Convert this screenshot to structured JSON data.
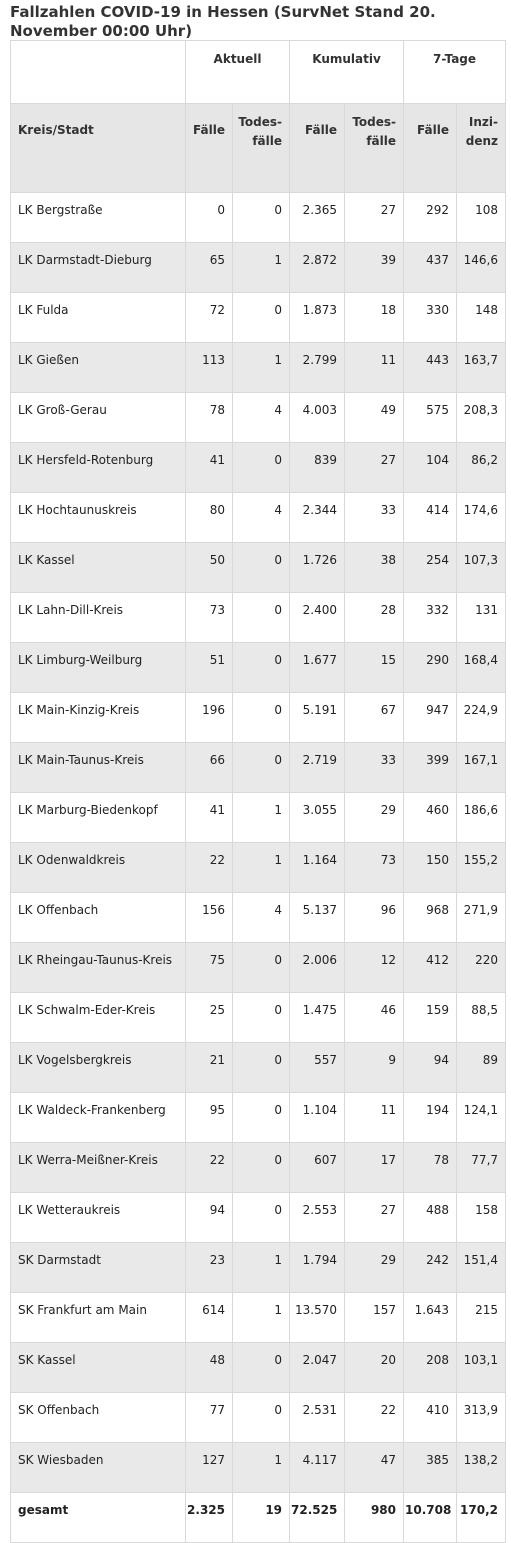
{
  "title": "Fallzahlen COVID-19 in Hessen (SurvNet Stand 20. November 00:00 Uhr)",
  "group_headers": [
    "Aktuell",
    "Kumulativ",
    "7-Tage"
  ],
  "col_headers": {
    "kreis": "Kreis/Stadt",
    "faelle": "Fälle",
    "todes_1": "Todes-",
    "todes_2": "fälle",
    "inzi_1": "Inzi-",
    "inzi_2": "denz"
  },
  "rows": [
    {
      "name": "LK Bergstraße",
      "a_f": "0",
      "a_t": "0",
      "k_f": "2.365",
      "k_t": "27",
      "s_f": "292",
      "s_i": "108"
    },
    {
      "name": "LK Darmstadt-Dieburg",
      "a_f": "65",
      "a_t": "1",
      "k_f": "2.872",
      "k_t": "39",
      "s_f": "437",
      "s_i": "146,6"
    },
    {
      "name": "LK Fulda",
      "a_f": "72",
      "a_t": "0",
      "k_f": "1.873",
      "k_t": "18",
      "s_f": "330",
      "s_i": "148"
    },
    {
      "name": "LK Gießen",
      "a_f": "113",
      "a_t": "1",
      "k_f": "2.799",
      "k_t": "11",
      "s_f": "443",
      "s_i": "163,7"
    },
    {
      "name": "LK Groß-Gerau",
      "a_f": "78",
      "a_t": "4",
      "k_f": "4.003",
      "k_t": "49",
      "s_f": "575",
      "s_i": "208,3"
    },
    {
      "name": "LK Hersfeld-Rotenburg",
      "a_f": "41",
      "a_t": "0",
      "k_f": "839",
      "k_t": "27",
      "s_f": "104",
      "s_i": "86,2"
    },
    {
      "name": "LK Hochtaunuskreis",
      "a_f": "80",
      "a_t": "4",
      "k_f": "2.344",
      "k_t": "33",
      "s_f": "414",
      "s_i": "174,6"
    },
    {
      "name": "LK Kassel",
      "a_f": "50",
      "a_t": "0",
      "k_f": "1.726",
      "k_t": "38",
      "s_f": "254",
      "s_i": "107,3"
    },
    {
      "name": "LK Lahn-Dill-Kreis",
      "a_f": "73",
      "a_t": "0",
      "k_f": "2.400",
      "k_t": "28",
      "s_f": "332",
      "s_i": "131"
    },
    {
      "name": "LK Limburg-Weilburg",
      "a_f": "51",
      "a_t": "0",
      "k_f": "1.677",
      "k_t": "15",
      "s_f": "290",
      "s_i": "168,4"
    },
    {
      "name": "LK Main-Kinzig-Kreis",
      "a_f": "196",
      "a_t": "0",
      "k_f": "5.191",
      "k_t": "67",
      "s_f": "947",
      "s_i": "224,9"
    },
    {
      "name": "LK Main-Taunus-Kreis",
      "a_f": "66",
      "a_t": "0",
      "k_f": "2.719",
      "k_t": "33",
      "s_f": "399",
      "s_i": "167,1"
    },
    {
      "name": "LK Marburg-Biedenkopf",
      "a_f": "41",
      "a_t": "1",
      "k_f": "3.055",
      "k_t": "29",
      "s_f": "460",
      "s_i": "186,6"
    },
    {
      "name": "LK Odenwaldkreis",
      "a_f": "22",
      "a_t": "1",
      "k_f": "1.164",
      "k_t": "73",
      "s_f": "150",
      "s_i": "155,2"
    },
    {
      "name": "LK Offenbach",
      "a_f": "156",
      "a_t": "4",
      "k_f": "5.137",
      "k_t": "96",
      "s_f": "968",
      "s_i": "271,9"
    },
    {
      "name": "LK Rheingau-Taunus-Kreis",
      "a_f": "75",
      "a_t": "0",
      "k_f": "2.006",
      "k_t": "12",
      "s_f": "412",
      "s_i": "220"
    },
    {
      "name": "LK Schwalm-Eder-Kreis",
      "a_f": "25",
      "a_t": "0",
      "k_f": "1.475",
      "k_t": "46",
      "s_f": "159",
      "s_i": "88,5"
    },
    {
      "name": "LK Vogelsbergkreis",
      "a_f": "21",
      "a_t": "0",
      "k_f": "557",
      "k_t": "9",
      "s_f": "94",
      "s_i": "89"
    },
    {
      "name": "LK Waldeck-Frankenberg",
      "a_f": "95",
      "a_t": "0",
      "k_f": "1.104",
      "k_t": "11",
      "s_f": "194",
      "s_i": "124,1"
    },
    {
      "name": "LK Werra-Meißner-Kreis",
      "a_f": "22",
      "a_t": "0",
      "k_f": "607",
      "k_t": "17",
      "s_f": "78",
      "s_i": "77,7"
    },
    {
      "name": "LK Wetteraukreis",
      "a_f": "94",
      "a_t": "0",
      "k_f": "2.553",
      "k_t": "27",
      "s_f": "488",
      "s_i": "158"
    },
    {
      "name": "SK Darmstadt",
      "a_f": "23",
      "a_t": "1",
      "k_f": "1.794",
      "k_t": "29",
      "s_f": "242",
      "s_i": "151,4"
    },
    {
      "name": "SK Frankfurt am Main",
      "a_f": "614",
      "a_t": "1",
      "k_f": "13.570",
      "k_t": "157",
      "s_f": "1.643",
      "s_i": "215"
    },
    {
      "name": "SK Kassel",
      "a_f": "48",
      "a_t": "0",
      "k_f": "2.047",
      "k_t": "20",
      "s_f": "208",
      "s_i": "103,1"
    },
    {
      "name": "SK Offenbach",
      "a_f": "77",
      "a_t": "0",
      "k_f": "2.531",
      "k_t": "22",
      "s_f": "410",
      "s_i": "313,9"
    },
    {
      "name": "SK Wiesbaden",
      "a_f": "127",
      "a_t": "1",
      "k_f": "4.117",
      "k_t": "47",
      "s_f": "385",
      "s_i": "138,2"
    }
  ],
  "total": {
    "name": "gesamt",
    "a_f": "2.325",
    "a_t": "19",
    "k_f": "72.525",
    "k_t": "980",
    "s_f": "10.708",
    "s_i": "170,2"
  }
}
